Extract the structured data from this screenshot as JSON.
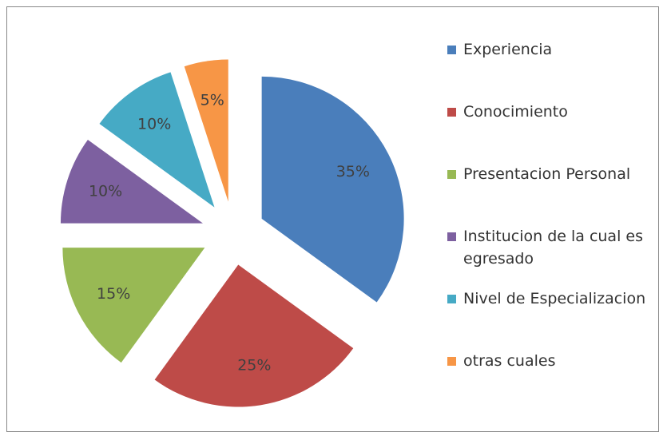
{
  "chart_data": {
    "type": "pie",
    "categories": [
      "Experiencia",
      "Conocimiento",
      "Presentacion Personal",
      "Institucion de la cual es egresado",
      "Nivel de Especializacion",
      "otras cuales"
    ],
    "values": [
      35,
      25,
      15,
      10,
      10,
      5
    ],
    "value_labels": [
      "35%",
      "25%",
      "15%",
      "10%",
      "10%",
      "5%"
    ],
    "colors": [
      "#4a7ebb",
      "#be4b48",
      "#98b954",
      "#7d60a0",
      "#46aac5",
      "#f79646"
    ],
    "legend": "right"
  }
}
